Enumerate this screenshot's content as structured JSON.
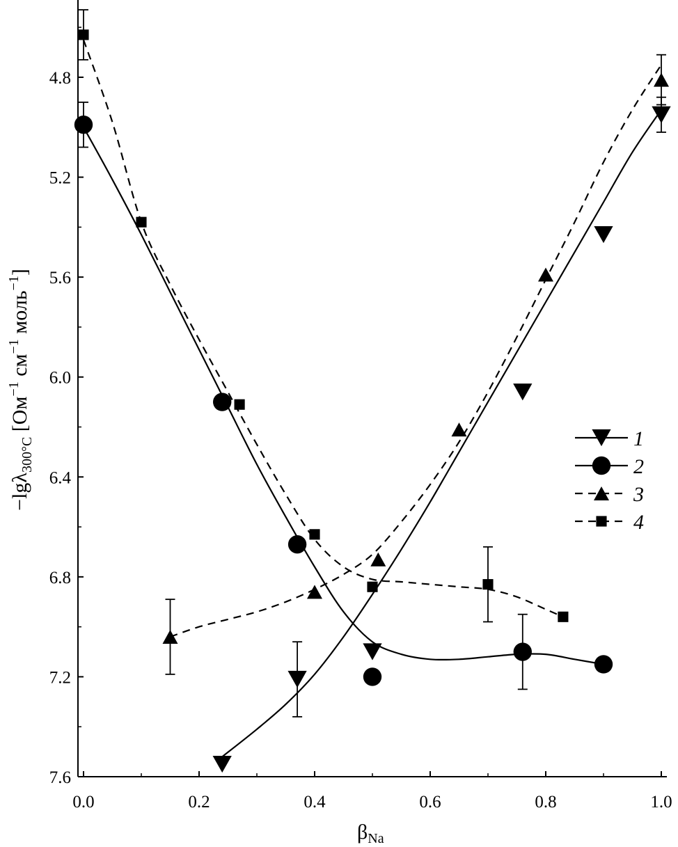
{
  "chart_data": {
    "type": "line",
    "xlabel": "β",
    "xlabel_sub": "Na",
    "ylabel": "−lgλ",
    "ylabel_sub": "300°C",
    "ylabel_unit": " [Ом",
    "ylabel_unit2": " см",
    "ylabel_unit3": " моль",
    "ylabel_sup": "−1",
    "ylabel_close": "]",
    "xlim": [
      0.0,
      1.0
    ],
    "ylim": [
      4.65,
      7.6
    ],
    "y_inverted": true,
    "xticks": [
      "0.0",
      "0.2",
      "0.4",
      "0.6",
      "0.8",
      "1.0"
    ],
    "yticks": [
      "4.8",
      "5.2",
      "5.6",
      "6.0",
      "6.4",
      "6.8",
      "7.2",
      "7.6"
    ],
    "grid": false,
    "legend_position": "right",
    "series": [
      {
        "name": "1",
        "marker": "triangle-down",
        "line": "solid",
        "points": [
          [
            0.24,
            7.55
          ],
          [
            0.37,
            7.21
          ],
          [
            0.5,
            7.1
          ],
          [
            0.76,
            6.06
          ],
          [
            0.9,
            5.43
          ],
          [
            1.0,
            4.95
          ]
        ],
        "errors": [
          [
            0.37,
            0.15
          ],
          [
            1.0,
            0.07
          ]
        ],
        "curve": [
          [
            0.24,
            7.52
          ],
          [
            0.3,
            7.41
          ],
          [
            0.35,
            7.31
          ],
          [
            0.4,
            7.19
          ],
          [
            0.45,
            7.04
          ],
          [
            0.5,
            6.87
          ],
          [
            0.55,
            6.69
          ],
          [
            0.6,
            6.5
          ],
          [
            0.65,
            6.3
          ],
          [
            0.7,
            6.1
          ],
          [
            0.75,
            5.9
          ],
          [
            0.8,
            5.7
          ],
          [
            0.85,
            5.5
          ],
          [
            0.9,
            5.3
          ],
          [
            0.95,
            5.1
          ],
          [
            1.0,
            4.93
          ]
        ]
      },
      {
        "name": "2",
        "marker": "circle",
        "line": "solid",
        "points": [
          [
            0.0,
            4.99
          ],
          [
            0.24,
            6.1
          ],
          [
            0.37,
            6.67
          ],
          [
            0.5,
            7.2
          ],
          [
            0.76,
            7.1
          ],
          [
            0.9,
            7.15
          ]
        ],
        "errors": [
          [
            0.0,
            0.09
          ],
          [
            0.76,
            0.15
          ]
        ],
        "curve": [
          [
            0.0,
            5.0
          ],
          [
            0.05,
            5.21
          ],
          [
            0.1,
            5.43
          ],
          [
            0.15,
            5.66
          ],
          [
            0.2,
            5.89
          ],
          [
            0.25,
            6.12
          ],
          [
            0.3,
            6.35
          ],
          [
            0.35,
            6.56
          ],
          [
            0.4,
            6.76
          ],
          [
            0.45,
            6.94
          ],
          [
            0.5,
            7.06
          ],
          [
            0.55,
            7.11
          ],
          [
            0.6,
            7.13
          ],
          [
            0.65,
            7.13
          ],
          [
            0.7,
            7.12
          ],
          [
            0.75,
            7.11
          ],
          [
            0.8,
            7.11
          ],
          [
            0.85,
            7.13
          ],
          [
            0.9,
            7.15
          ]
        ]
      },
      {
        "name": "3",
        "marker": "triangle-up",
        "line": "dashed",
        "points": [
          [
            0.15,
            7.04
          ],
          [
            0.4,
            6.86
          ],
          [
            0.51,
            6.73
          ],
          [
            0.65,
            6.21
          ],
          [
            0.8,
            5.59
          ],
          [
            1.0,
            4.81
          ]
        ],
        "errors": [
          [
            0.15,
            0.15
          ],
          [
            1.0,
            0.1
          ]
        ],
        "curve": [
          [
            0.15,
            7.04
          ],
          [
            0.2,
            7.0
          ],
          [
            0.25,
            6.97
          ],
          [
            0.3,
            6.94
          ],
          [
            0.35,
            6.9
          ],
          [
            0.4,
            6.85
          ],
          [
            0.45,
            6.79
          ],
          [
            0.5,
            6.71
          ],
          [
            0.55,
            6.58
          ],
          [
            0.6,
            6.43
          ],
          [
            0.65,
            6.26
          ],
          [
            0.7,
            6.06
          ],
          [
            0.75,
            5.84
          ],
          [
            0.8,
            5.61
          ],
          [
            0.85,
            5.38
          ],
          [
            0.9,
            5.14
          ],
          [
            0.95,
            4.93
          ],
          [
            1.0,
            4.75
          ]
        ]
      },
      {
        "name": "4",
        "marker": "square",
        "line": "dashed",
        "points": [
          [
            0.0,
            4.63
          ],
          [
            0.1,
            5.38
          ],
          [
            0.27,
            6.11
          ],
          [
            0.4,
            6.63
          ],
          [
            0.5,
            6.84
          ],
          [
            0.7,
            6.83
          ],
          [
            0.83,
            6.96
          ]
        ],
        "errors": [
          [
            0.0,
            0.1
          ],
          [
            0.7,
            0.15
          ]
        ],
        "curve": [
          [
            0.0,
            4.65
          ],
          [
            0.05,
            4.98
          ],
          [
            0.1,
            5.38
          ],
          [
            0.15,
            5.63
          ],
          [
            0.2,
            5.85
          ],
          [
            0.25,
            6.06
          ],
          [
            0.3,
            6.27
          ],
          [
            0.35,
            6.47
          ],
          [
            0.4,
            6.65
          ],
          [
            0.45,
            6.76
          ],
          [
            0.5,
            6.81
          ],
          [
            0.55,
            6.82
          ],
          [
            0.6,
            6.83
          ],
          [
            0.65,
            6.84
          ],
          [
            0.7,
            6.85
          ],
          [
            0.75,
            6.88
          ],
          [
            0.8,
            6.93
          ],
          [
            0.83,
            6.96
          ]
        ]
      }
    ]
  }
}
